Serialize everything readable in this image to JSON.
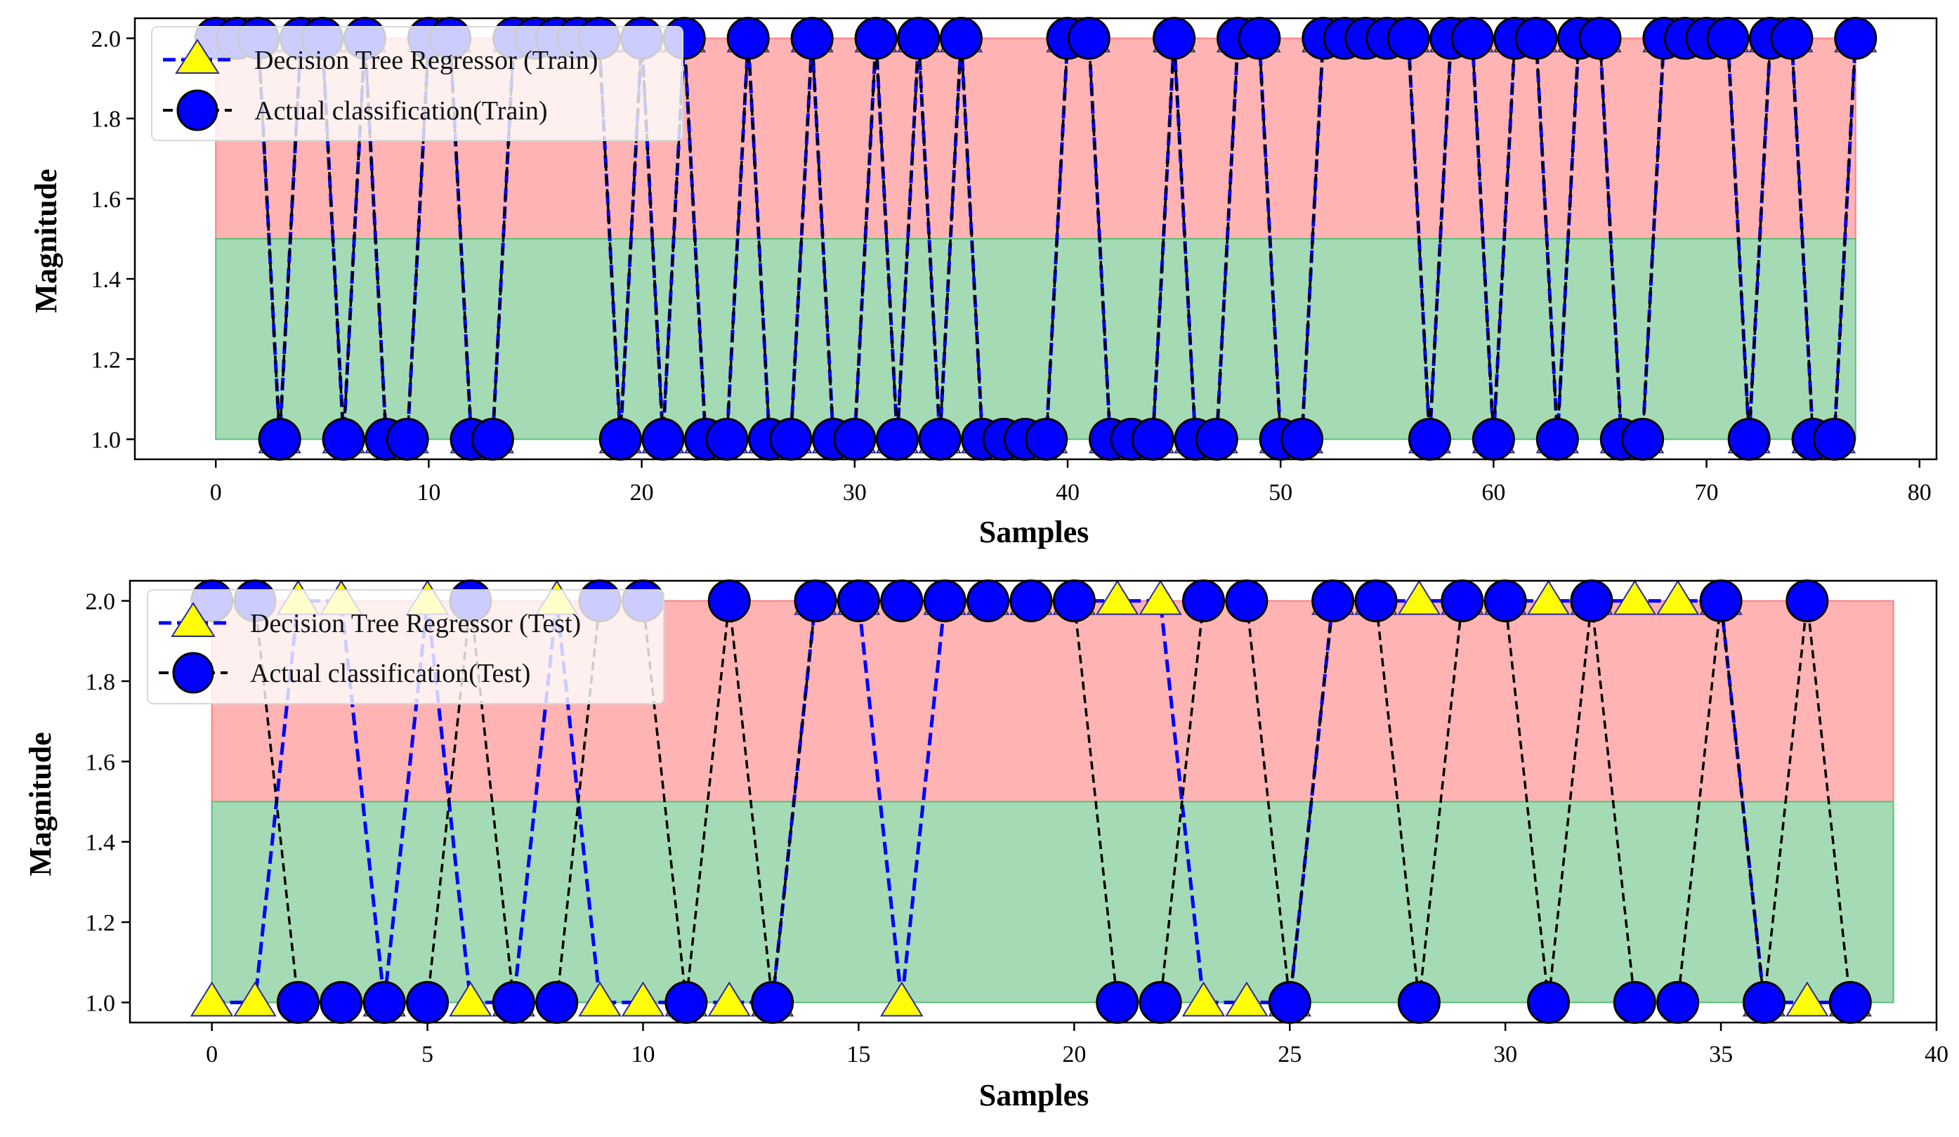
{
  "colors": {
    "red_band": "#ff8080",
    "green_band": "#59be78",
    "pred_line": "#0000ff",
    "pred_marker": "#ffff00",
    "actual_line": "#000000",
    "actual_marker": "#0000ff"
  },
  "chart_data": [
    {
      "type": "line",
      "title": "",
      "xlabel": "Samples",
      "ylabel": "Magnitude",
      "xlim": [
        -3.8,
        80.8
      ],
      "ylim": [
        0.95,
        2.05
      ],
      "xticks": [
        0,
        10,
        20,
        30,
        40,
        50,
        60,
        70,
        80
      ],
      "yticks": [
        1.0,
        1.2,
        1.4,
        1.6,
        1.8,
        2.0
      ],
      "bands": [
        {
          "y0": 1.5,
          "y1": 2.0,
          "x0": 0,
          "x1": 77,
          "color": "red"
        },
        {
          "y0": 1.0,
          "y1": 1.5,
          "x0": 0,
          "x1": 77,
          "color": "green"
        }
      ],
      "legend_loc": "upper-left",
      "series": [
        {
          "name": "Decision Tree Regressor (Train)",
          "style": "dashed-blue-triangle",
          "values": [
            2,
            2,
            2,
            1,
            2,
            2,
            1,
            2,
            1,
            1,
            2,
            2,
            1,
            1,
            2,
            2,
            2,
            2,
            2,
            1,
            2,
            1,
            2,
            1,
            1,
            2,
            1,
            1,
            2,
            1,
            1,
            2,
            1,
            2,
            1,
            2,
            1,
            1,
            1,
            1,
            2,
            2,
            1,
            1,
            1,
            2,
            1,
            1,
            2,
            2,
            1,
            1,
            2,
            2,
            2,
            2,
            2,
            1,
            2,
            2,
            1,
            2,
            2,
            1,
            2,
            2,
            1,
            1,
            2,
            2,
            2,
            2,
            1,
            2,
            2,
            1,
            1,
            2
          ]
        },
        {
          "name": "Actual classification(Train)",
          "style": "dashed-black-circle",
          "values": [
            2,
            2,
            2,
            1,
            2,
            2,
            1,
            2,
            1,
            1,
            2,
            2,
            1,
            1,
            2,
            2,
            2,
            2,
            2,
            1,
            2,
            1,
            2,
            1,
            1,
            2,
            1,
            1,
            2,
            1,
            1,
            2,
            1,
            2,
            1,
            2,
            1,
            1,
            1,
            1,
            2,
            2,
            1,
            1,
            1,
            2,
            1,
            1,
            2,
            2,
            1,
            1,
            2,
            2,
            2,
            2,
            2,
            1,
            2,
            2,
            1,
            2,
            2,
            1,
            2,
            2,
            1,
            1,
            2,
            2,
            2,
            2,
            1,
            2,
            2,
            1,
            1,
            2
          ]
        }
      ]
    },
    {
      "type": "line",
      "title": "",
      "xlabel": "Samples",
      "ylabel": "Magnitude",
      "xlim": [
        -1.9,
        40.0
      ],
      "ylim": [
        0.95,
        2.05
      ],
      "xticks": [
        0,
        5,
        10,
        15,
        20,
        25,
        30,
        35,
        40
      ],
      "yticks": [
        1.0,
        1.2,
        1.4,
        1.6,
        1.8,
        2.0
      ],
      "bands": [
        {
          "y0": 1.5,
          "y1": 2.0,
          "x0": 0,
          "x1": 39,
          "color": "red"
        },
        {
          "y0": 1.0,
          "y1": 1.5,
          "x0": 0,
          "x1": 39,
          "color": "green"
        }
      ],
      "legend_loc": "upper-left",
      "series": [
        {
          "name": "Decision Tree Regressor (Test)",
          "style": "dashed-blue-triangle",
          "values": [
            1,
            1,
            2,
            2,
            1,
            2,
            1,
            1,
            2,
            1,
            1,
            1,
            1,
            1,
            2,
            2,
            1,
            2,
            2,
            2,
            2,
            2,
            2,
            1,
            1,
            1,
            2,
            2,
            2,
            2,
            2,
            2,
            2,
            2,
            2,
            2,
            1,
            1,
            1
          ]
        },
        {
          "name": "Actual classification(Test)",
          "style": "dashed-black-circle",
          "values": [
            2,
            2,
            1,
            1,
            1,
            1,
            2,
            1,
            1,
            2,
            2,
            1,
            2,
            1,
            2,
            2,
            2,
            2,
            2,
            2,
            2,
            1,
            1,
            2,
            2,
            1,
            2,
            2,
            1,
            2,
            2,
            1,
            2,
            1,
            1,
            2,
            1,
            2,
            1
          ]
        }
      ]
    }
  ]
}
